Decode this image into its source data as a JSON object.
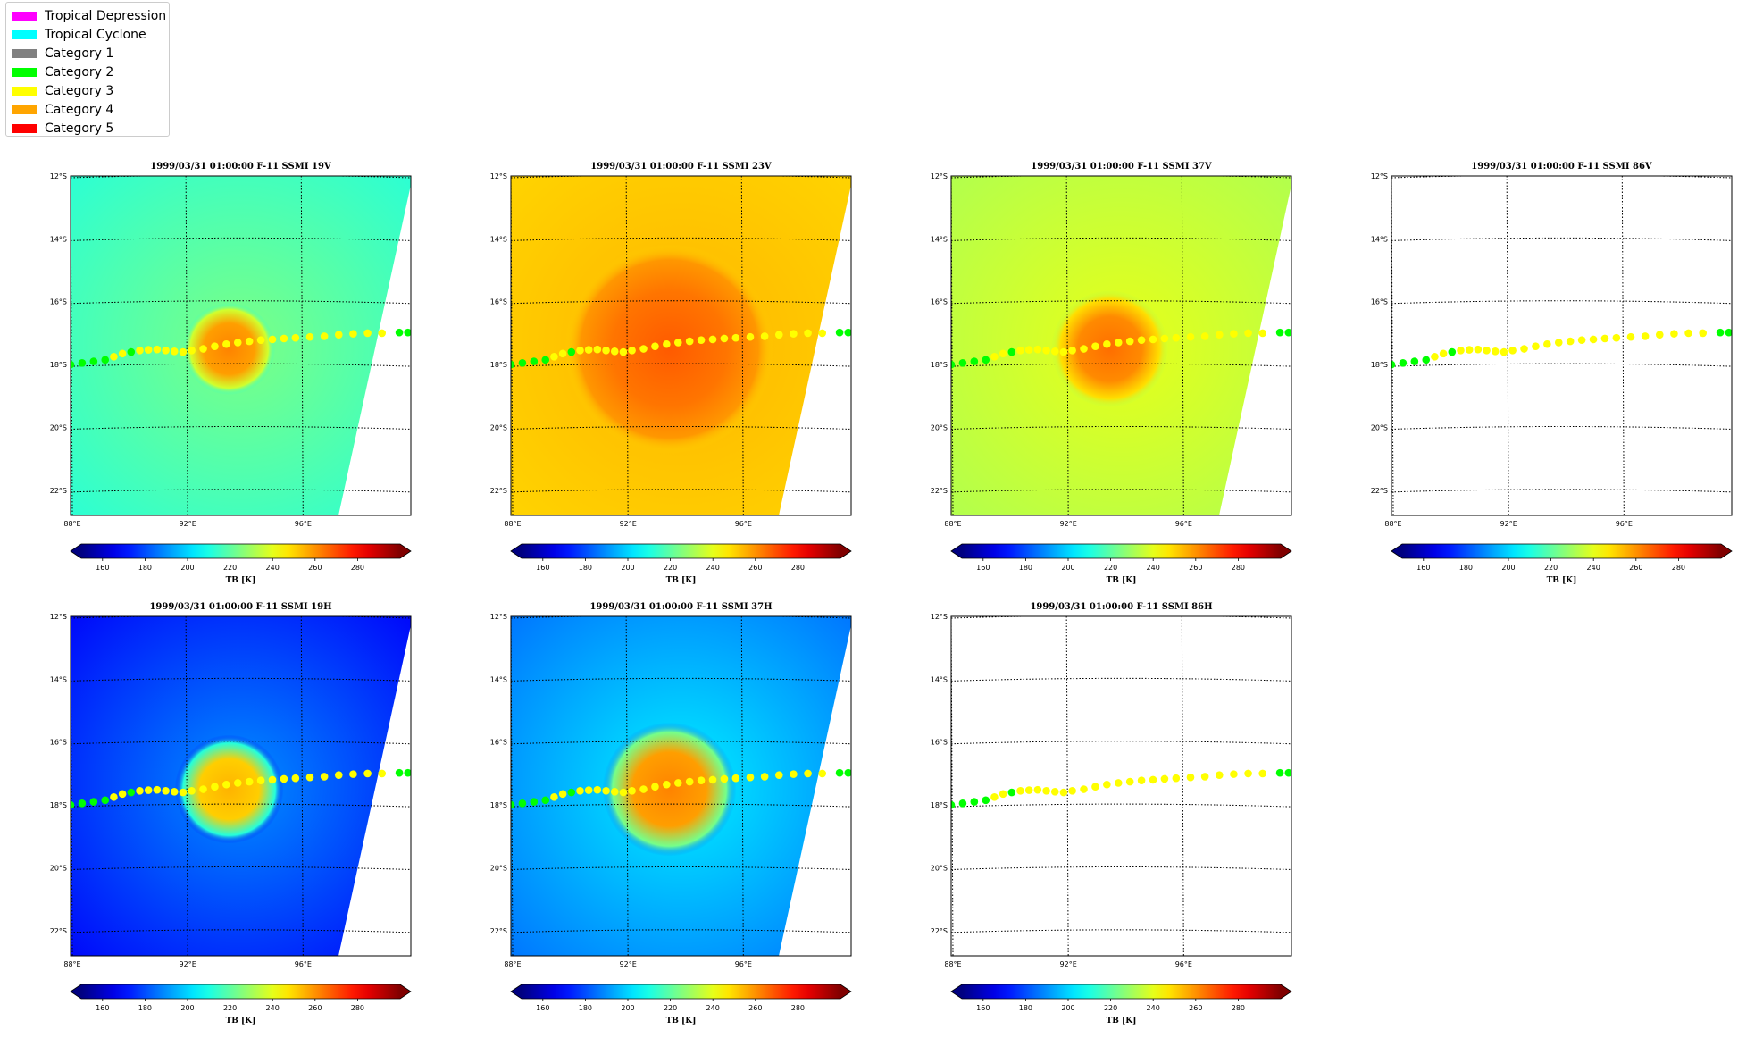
{
  "legend": {
    "items": [
      {
        "label": "Tropical Depression",
        "color": "#ff00ff"
      },
      {
        "label": "Tropical Cyclone",
        "color": "#00ffff"
      },
      {
        "label": "Category 1",
        "color": "#808080"
      },
      {
        "label": "Category 2",
        "color": "#00ff00"
      },
      {
        "label": "Category 3",
        "color": "#ffff00"
      },
      {
        "label": "Category 4",
        "color": "#ffa500"
      },
      {
        "label": "Category 5",
        "color": "#ff0000"
      }
    ]
  },
  "colorbar": {
    "label": "TB [K]",
    "ticks": [
      "160",
      "180",
      "200",
      "220",
      "240",
      "260",
      "280"
    ],
    "range": [
      150,
      300
    ],
    "colormap": "jet"
  },
  "track": {
    "points": [
      {
        "lon": 88.0,
        "lat": -18.0,
        "category": 2
      },
      {
        "lon": 88.4,
        "lat": -17.95,
        "category": 2
      },
      {
        "lon": 88.8,
        "lat": -17.9,
        "category": 2
      },
      {
        "lon": 89.2,
        "lat": -17.85,
        "category": 2
      },
      {
        "lon": 89.5,
        "lat": -17.75,
        "category": 3
      },
      {
        "lon": 89.8,
        "lat": -17.65,
        "category": 3
      },
      {
        "lon": 90.1,
        "lat": -17.6,
        "category": 2
      },
      {
        "lon": 90.4,
        "lat": -17.55,
        "category": 3
      },
      {
        "lon": 90.7,
        "lat": -17.53,
        "category": 3
      },
      {
        "lon": 91.0,
        "lat": -17.52,
        "category": 3
      },
      {
        "lon": 91.3,
        "lat": -17.55,
        "category": 3
      },
      {
        "lon": 91.6,
        "lat": -17.58,
        "category": 3
      },
      {
        "lon": 91.9,
        "lat": -17.6,
        "category": 3
      },
      {
        "lon": 92.2,
        "lat": -17.55,
        "category": 3
      },
      {
        "lon": 92.6,
        "lat": -17.5,
        "category": 3
      },
      {
        "lon": 93.0,
        "lat": -17.42,
        "category": 3
      },
      {
        "lon": 93.4,
        "lat": -17.35,
        "category": 3
      },
      {
        "lon": 93.8,
        "lat": -17.3,
        "category": 3
      },
      {
        "lon": 94.2,
        "lat": -17.26,
        "category": 3
      },
      {
        "lon": 94.6,
        "lat": -17.22,
        "category": 3
      },
      {
        "lon": 95.0,
        "lat": -17.2,
        "category": 3
      },
      {
        "lon": 95.4,
        "lat": -17.17,
        "category": 3
      },
      {
        "lon": 95.8,
        "lat": -17.15,
        "category": 3
      },
      {
        "lon": 96.3,
        "lat": -17.12,
        "category": 3
      },
      {
        "lon": 96.8,
        "lat": -17.1,
        "category": 3
      },
      {
        "lon": 97.3,
        "lat": -17.05,
        "category": 3
      },
      {
        "lon": 97.8,
        "lat": -17.02,
        "category": 3
      },
      {
        "lon": 98.3,
        "lat": -17.0,
        "category": 3
      },
      {
        "lon": 98.8,
        "lat": -17.0,
        "category": 3
      },
      {
        "lon": 99.4,
        "lat": -16.98,
        "category": 2
      },
      {
        "lon": 99.7,
        "lat": -16.98,
        "category": 2
      }
    ]
  },
  "chart_data": [
    {
      "type": "heatmap",
      "title": "1999/03/31 01:00:00  F-11 SSMI 19V",
      "xticks": [
        "88°E",
        "92°E",
        "96°E"
      ],
      "yticks": [
        "12°S",
        "14°S",
        "16°S",
        "18°S",
        "20°S",
        "22°S"
      ],
      "xlim": [
        88,
        99.8
      ],
      "ylim": [
        -22.8,
        -12
      ],
      "background_tb": 212,
      "eye_tb": 262,
      "eye_center": [
        93.5,
        -17.5
      ],
      "eye_radius_deg": 1.1,
      "has_data": true
    },
    {
      "type": "heatmap",
      "title": "1999/03/31 01:00:00  F-11 SSMI 23V",
      "xticks": [
        "88°E",
        "92°E",
        "96°E"
      ],
      "yticks": [
        "12°S",
        "14°S",
        "16°S",
        "18°S",
        "20°S",
        "22°S"
      ],
      "xlim": [
        88,
        99.8
      ],
      "ylim": [
        -22.8,
        -12
      ],
      "background_tb": 250,
      "eye_tb": 268,
      "eye_center": [
        93.5,
        -17.5
      ],
      "eye_radius_deg": 2.5,
      "has_data": true
    },
    {
      "type": "heatmap",
      "title": "1999/03/31 01:00:00  F-11 SSMI 37V",
      "xticks": [
        "88°E",
        "92°E",
        "96°E"
      ],
      "yticks": [
        "12°S",
        "14°S",
        "16°S",
        "18°S",
        "20°S",
        "22°S"
      ],
      "xlim": [
        88,
        99.8
      ],
      "ylim": [
        -22.8,
        -12
      ],
      "background_tb": 232,
      "eye_tb": 265,
      "eye_center": [
        93.5,
        -17.5
      ],
      "eye_radius_deg": 1.4,
      "has_data": true
    },
    {
      "type": "heatmap",
      "title": "1999/03/31 01:00:00  F-11 SSMI 86V",
      "xticks": [
        "88°E",
        "92°E",
        "96°E"
      ],
      "yticks": [
        "12°S",
        "14°S",
        "16°S",
        "18°S",
        "20°S",
        "22°S"
      ],
      "xlim": [
        88,
        99.8
      ],
      "ylim": [
        -22.8,
        -12
      ],
      "has_data": false
    },
    {
      "type": "heatmap",
      "title": "1999/03/31 01:00:00  F-11 SSMI 19H",
      "xticks": [
        "88°E",
        "92°E",
        "96°E"
      ],
      "yticks": [
        "12°S",
        "14°S",
        "16°S",
        "18°S",
        "20°S",
        "22°S"
      ],
      "xlim": [
        88,
        99.8
      ],
      "ylim": [
        -22.8,
        -12
      ],
      "background_tb": 168,
      "eye_tb": 255,
      "eye_center": [
        93.5,
        -17.5
      ],
      "eye_radius_deg": 1.3,
      "has_data": true
    },
    {
      "type": "heatmap",
      "title": "1999/03/31 01:00:00  F-11 SSMI 37H",
      "xticks": [
        "88°E",
        "92°E",
        "96°E"
      ],
      "yticks": [
        "12°S",
        "14°S",
        "16°S",
        "18°S",
        "20°S",
        "22°S"
      ],
      "xlim": [
        88,
        99.8
      ],
      "ylim": [
        -22.8,
        -12
      ],
      "background_tb": 185,
      "eye_tb": 262,
      "eye_center": [
        93.5,
        -17.5
      ],
      "eye_radius_deg": 1.6,
      "has_data": true
    },
    {
      "type": "heatmap",
      "title": "1999/03/31 01:00:00  F-11 SSMI 86H",
      "xticks": [
        "88°E",
        "92°E",
        "96°E"
      ],
      "yticks": [
        "12°S",
        "14°S",
        "16°S",
        "18°S",
        "20°S",
        "22°S"
      ],
      "xlim": [
        88,
        99.8
      ],
      "ylim": [
        -22.8,
        -12
      ],
      "has_data": false
    }
  ]
}
